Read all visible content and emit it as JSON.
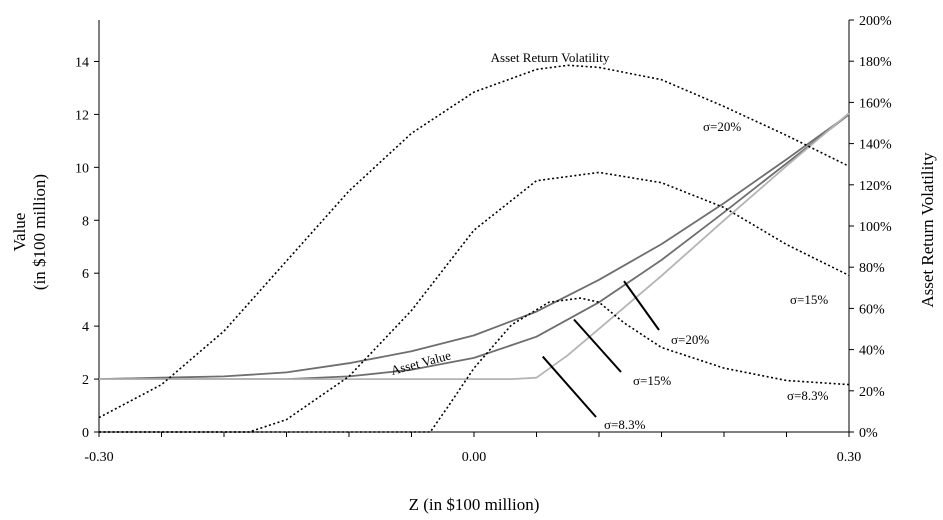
{
  "chart_data": {
    "type": "line",
    "xlabel": "Z (in $100 million)",
    "ylabel": [
      "Value",
      "(in $100 million)"
    ],
    "y2label": "Asset Return Volatility",
    "xlim": [
      -0.3,
      0.3
    ],
    "ylim": [
      0,
      15
    ],
    "y2lim": [
      0,
      200
    ],
    "x_ticks": [
      -0.3,
      0.0,
      0.3
    ],
    "x_tick_labels": [
      "-0.30",
      "0.00",
      "0.30"
    ],
    "y_ticks": [
      0,
      2,
      4,
      6,
      8,
      10,
      12,
      14
    ],
    "y_tick_labels": [
      "0",
      "2",
      "4",
      "6",
      "8",
      "10",
      "12",
      "14"
    ],
    "y2_ticks": [
      0,
      20,
      40,
      60,
      80,
      100,
      120,
      140,
      160,
      180,
      200
    ],
    "y2_tick_labels": [
      "0%",
      "20%",
      "40%",
      "60%",
      "80%",
      "100%",
      "120%",
      "140%",
      "160%",
      "180%",
      "200%"
    ],
    "grid": false,
    "legend": "none",
    "annotations": {
      "asset_value": "Asset Value",
      "asset_return_volatility": "Asset Return Volatility",
      "sigma_20_value": "σ=20%",
      "sigma_15_value": "σ=15%",
      "sigma_83_value": "σ=8.3%",
      "sigma_20_vol": "σ=20%",
      "sigma_15_vol": "σ=15%",
      "sigma_83_vol": "σ=8.3%"
    },
    "series": [
      {
        "axis": "left",
        "style": "solid",
        "color": "#6e6e6e",
        "x": [
          -0.3,
          -0.25,
          -0.2,
          -0.15,
          -0.1,
          -0.05,
          0.0,
          0.05,
          0.1,
          0.15,
          0.2,
          0.25,
          0.3
        ],
        "y": [
          2.0,
          2.05,
          2.1,
          2.25,
          2.6,
          3.05,
          3.65,
          4.55,
          5.75,
          7.1,
          8.65,
          10.3,
          12.0
        ]
      },
      {
        "axis": "left",
        "style": "solid",
        "color": "#6e6e6e",
        "x": [
          -0.3,
          -0.25,
          -0.2,
          -0.15,
          -0.1,
          -0.05,
          0.0,
          0.05,
          0.1,
          0.15,
          0.2,
          0.25,
          0.3
        ],
        "y": [
          2.0,
          2.0,
          2.0,
          2.0,
          2.1,
          2.35,
          2.8,
          3.6,
          4.9,
          6.5,
          8.3,
          10.15,
          12.0
        ]
      },
      {
        "axis": "left",
        "style": "solid",
        "color": "#b4b4b4",
        "x": [
          -0.3,
          -0.2,
          -0.1,
          0.0,
          0.03,
          0.05,
          0.075,
          0.1,
          0.15,
          0.2,
          0.25,
          0.3
        ],
        "y": [
          2.0,
          2.0,
          2.0,
          2.0,
          2.0,
          2.05,
          2.9,
          3.9,
          5.9,
          8.0,
          10.05,
          12.05
        ]
      },
      {
        "axis": "right",
        "style": "dotted",
        "color": "#000000",
        "x": [
          -0.3,
          -0.25,
          -0.2,
          -0.15,
          -0.1,
          -0.05,
          0.0,
          0.05,
          0.075,
          0.1,
          0.15,
          0.2,
          0.25,
          0.3
        ],
        "y": [
          7,
          23,
          49,
          83,
          117,
          145,
          165,
          176,
          178,
          177,
          171,
          158,
          144,
          129
        ]
      },
      {
        "axis": "right",
        "style": "dotted",
        "color": "#000000",
        "x": [
          -0.3,
          -0.2,
          -0.18,
          -0.15,
          -0.1,
          -0.05,
          0.0,
          0.05,
          0.1,
          0.15,
          0.2,
          0.25,
          0.3
        ],
        "y": [
          0,
          0,
          0,
          6,
          27,
          59,
          98,
          122,
          126,
          121,
          109,
          91,
          76
        ]
      },
      {
        "axis": "right",
        "style": "dotted",
        "color": "#000000",
        "x": [
          -0.3,
          -0.05,
          -0.035,
          -0.02,
          0.0,
          0.03,
          0.06,
          0.085,
          0.1,
          0.12,
          0.15,
          0.2,
          0.25,
          0.3
        ],
        "y": [
          0,
          0,
          0,
          13,
          31,
          52,
          63,
          65,
          63,
          53,
          41,
          31,
          25,
          23
        ]
      }
    ]
  }
}
